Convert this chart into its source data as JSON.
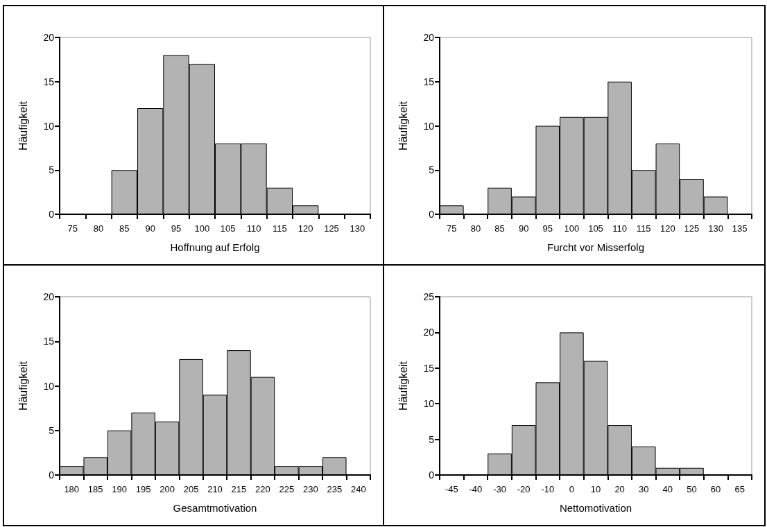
{
  "chart_data": [
    {
      "type": "bar",
      "categories": [
        "75",
        "80",
        "85",
        "90",
        "95",
        "100",
        "105",
        "110",
        "115",
        "120",
        "125",
        "130"
      ],
      "values": [
        0,
        0,
        5,
        12,
        18,
        17,
        8,
        8,
        3,
        1,
        0,
        0
      ],
      "color": "#b3b3b3",
      "xlabel": "Hoffnung auf Erfolg",
      "ylabel": "Häufigkeit",
      "ylim": [
        0,
        20
      ],
      "yticks": [
        0,
        5,
        10,
        15,
        20
      ]
    },
    {
      "type": "bar",
      "categories": [
        "75",
        "80",
        "85",
        "90",
        "95",
        "100",
        "105",
        "110",
        "115",
        "120",
        "125",
        "130",
        "135"
      ],
      "values": [
        1,
        0,
        3,
        2,
        10,
        11,
        11,
        15,
        5,
        8,
        4,
        2,
        0
      ],
      "color": "#b3b3b3",
      "xlabel": "Furcht vor Misserfolg",
      "ylabel": "Häufigkeit",
      "ylim": [
        0,
        20
      ],
      "yticks": [
        0,
        5,
        10,
        15,
        20
      ]
    },
    {
      "type": "bar",
      "categories": [
        "180",
        "185",
        "190",
        "195",
        "200",
        "205",
        "210",
        "215",
        "220",
        "225",
        "230",
        "235",
        "240"
      ],
      "values": [
        1,
        2,
        5,
        7,
        6,
        13,
        9,
        14,
        11,
        1,
        1,
        2,
        0
      ],
      "color": "#b3b3b3",
      "xlabel": "Gesamtmotivation",
      "ylabel": "Häufigkeit",
      "ylim": [
        0,
        20
      ],
      "yticks": [
        0,
        5,
        10,
        15,
        20
      ]
    },
    {
      "type": "bar",
      "categories": [
        "-45",
        "-40",
        "-30",
        "-20",
        "-10",
        "0",
        "10",
        "20",
        "30",
        "40",
        "50",
        "60",
        "65"
      ],
      "values": [
        0,
        0,
        3,
        7,
        13,
        20,
        16,
        7,
        4,
        1,
        1,
        0,
        0
      ],
      "color": "#b3b3b3",
      "xlabel": "Nettomotivation",
      "ylabel": "Häufigkeit",
      "ylim": [
        0,
        25
      ],
      "yticks": [
        0,
        5,
        10,
        15,
        20,
        25
      ]
    }
  ]
}
